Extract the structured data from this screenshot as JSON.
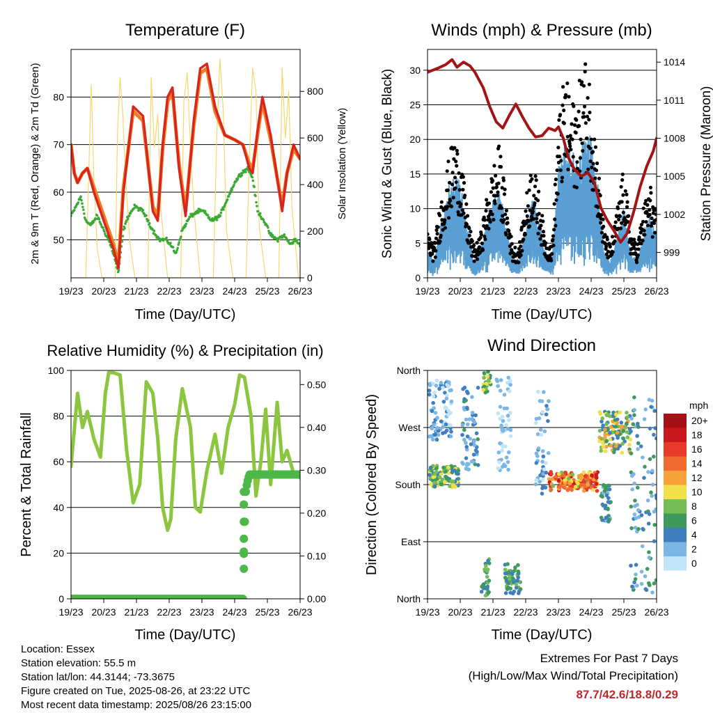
{
  "station_info": {
    "location": "Location: Essex",
    "elevation": "Station elevation: 55.5 m",
    "latlon": "Station lat/lon: 44.3144; -73.3675",
    "created": "Figure created on Tue, 2025-08-26, at 23:22 UTC",
    "recent": "Most recent data timestamp: 2025/08/26 23:15:00"
  },
  "extremes": {
    "title": "Extremes For Past 7 Days",
    "subtitle": "(High/Low/Max Wind/Total Precipitation)",
    "values": "87.7/42.6/18.8/0.29"
  },
  "colors": {
    "temp_2m": "#d7261e",
    "temp_9m": "#f47c20",
    "dewpoint": "#3aaa35",
    "insolation": "#f5d76e",
    "sonic_wind": "#5a9fd4",
    "gust": "#000000",
    "pressure": "#a31515",
    "rh": "#8cc63f",
    "precip": "#4db848"
  },
  "chart_data": [
    {
      "id": "temperature",
      "type": "line",
      "title": "Temperature (F)",
      "xlabel": "Time (Day/UTC)",
      "ylabel": "2m & 9m T (Red, Orange) & 2m Td (Green)",
      "y2label": "Solar Insolation (Yellow)",
      "x_ticks": [
        "19/23",
        "20/23",
        "21/23",
        "22/23",
        "23/23",
        "24/23",
        "25/23",
        "26/23"
      ],
      "xlim": [
        0,
        7
      ],
      "ylim": [
        42,
        90
      ],
      "y_ticks": [
        50,
        60,
        70,
        80
      ],
      "y2lim": [
        0,
        980
      ],
      "y2_ticks": [
        0,
        200,
        400,
        600,
        800
      ],
      "grid": "horizontal",
      "series": [
        {
          "key": "temp_2m",
          "x": [
            0,
            0.1,
            0.2,
            0.35,
            0.5,
            0.7,
            0.9,
            1.1,
            1.3,
            1.45,
            1.6,
            1.9,
            2.2,
            2.5,
            2.65,
            2.8,
            2.95,
            3.1,
            3.3,
            3.5,
            3.75,
            3.95,
            4.15,
            4.4,
            4.7,
            5.0,
            5.25,
            5.45,
            5.55,
            5.7,
            5.85,
            6.1,
            6.3,
            6.45,
            6.6,
            6.8,
            7.0
          ],
          "y": [
            70,
            64,
            62,
            64,
            65,
            60,
            56,
            52,
            48,
            44,
            60,
            78,
            76,
            56,
            54,
            70,
            80,
            82,
            65,
            55,
            75,
            86,
            87,
            78,
            72,
            71,
            70,
            65,
            64,
            73,
            80,
            72,
            63,
            56,
            64,
            70,
            67
          ]
        },
        {
          "key": "temp_9m",
          "x": [
            0,
            0.1,
            0.2,
            0.35,
            0.5,
            0.7,
            0.9,
            1.1,
            1.3,
            1.45,
            1.6,
            1.9,
            2.2,
            2.5,
            2.65,
            2.8,
            2.95,
            3.1,
            3.3,
            3.5,
            3.75,
            3.95,
            4.15,
            4.4,
            4.7,
            5.0,
            5.25,
            5.45,
            5.55,
            5.7,
            5.85,
            6.1,
            6.3,
            6.45,
            6.6,
            6.8,
            7.0
          ],
          "y": [
            70,
            64,
            62,
            64,
            65,
            61,
            57,
            53,
            49,
            45,
            61,
            77,
            75,
            57,
            55,
            69,
            79,
            81,
            66,
            56,
            74,
            85,
            86,
            77,
            72,
            71,
            70,
            66,
            65,
            72,
            79,
            71,
            63,
            57,
            64,
            69,
            67
          ]
        },
        {
          "key": "dewpoint",
          "x": [
            0,
            0.15,
            0.3,
            0.45,
            0.6,
            0.8,
            1.0,
            1.15,
            1.3,
            1.45,
            1.6,
            1.75,
            1.95,
            2.2,
            2.5,
            2.7,
            2.9,
            3.05,
            3.2,
            3.4,
            3.65,
            3.9,
            4.05,
            4.3,
            4.55,
            4.8,
            5.0,
            5.2,
            5.4,
            5.55,
            5.7,
            5.9,
            6.1,
            6.3,
            6.5,
            6.7,
            6.85,
            7.0
          ],
          "y": [
            55,
            57,
            59,
            54,
            53,
            55,
            52,
            50,
            47,
            43,
            52,
            55,
            57,
            56,
            52,
            50,
            50,
            49,
            47,
            52,
            55,
            56,
            56,
            54,
            55,
            59,
            62,
            64,
            65,
            63,
            56,
            54,
            51,
            50,
            51,
            49,
            50,
            49
          ]
        },
        {
          "key": "insolation",
          "x": [
            0,
            0.45,
            0.55,
            0.62,
            0.7,
            0.8,
            0.95,
            1.35,
            1.42,
            1.5,
            1.58,
            1.65,
            1.72,
            1.8,
            1.95,
            2.35,
            2.45,
            2.55,
            2.65,
            2.75,
            2.95,
            3.35,
            3.45,
            3.55,
            3.65,
            3.75,
            3.95,
            4.35,
            4.45,
            4.55,
            4.65,
            4.75,
            4.95,
            5.35,
            5.45,
            5.55,
            5.65,
            5.75,
            5.95,
            6.35,
            6.45,
            6.55,
            6.65,
            6.75,
            6.95
          ],
          "y": [
            0,
            0,
            500,
            830,
            420,
            120,
            0,
            0,
            620,
            860,
            700,
            480,
            320,
            150,
            0,
            0,
            860,
            560,
            700,
            280,
            0,
            0,
            760,
            880,
            560,
            300,
            0,
            0,
            600,
            940,
            720,
            200,
            0,
            0,
            500,
            900,
            800,
            220,
            0,
            0,
            900,
            600,
            800,
            300,
            0
          ]
        }
      ]
    },
    {
      "id": "winds",
      "type": "scatter",
      "title": "Winds (mph) & Pressure (mb)",
      "xlabel": "Time (Day/UTC)",
      "ylabel": "Sonic Wind & Gust (Blue, Black)",
      "y2label": "Station Pressure (Maroon)",
      "x_ticks": [
        "19/23",
        "20/23",
        "21/23",
        "22/23",
        "23/23",
        "24/23",
        "25/23",
        "26/23"
      ],
      "xlim": [
        0,
        7
      ],
      "ylim": [
        0,
        33
      ],
      "y_ticks": [
        0,
        5,
        10,
        15,
        20,
        25,
        30
      ],
      "y2lim": [
        997,
        1015
      ],
      "y2_ticks": [
        999,
        1002,
        1005,
        1008,
        1011,
        1014
      ],
      "grid": "horizontal",
      "series": [
        {
          "key": "sonic_wind",
          "x": [
            0,
            0.2,
            0.4,
            0.6,
            0.8,
            1.0,
            1.2,
            1.4,
            1.6,
            1.8,
            2.0,
            2.2,
            2.4,
            2.6,
            2.8,
            3.0,
            3.2,
            3.4,
            3.6,
            3.8,
            4.0,
            4.2,
            4.4,
            4.6,
            4.8,
            5.0,
            5.2,
            5.4,
            5.6,
            5.8,
            6.0,
            6.2,
            6.4,
            6.6,
            6.8,
            7.0
          ],
          "y": [
            3,
            2,
            6,
            9,
            12,
            11,
            6,
            2,
            3,
            6,
            9,
            10,
            6,
            2,
            2,
            6,
            9,
            7,
            3,
            2,
            12,
            15,
            13,
            14,
            15,
            16,
            10,
            3,
            2,
            5,
            8,
            3,
            2,
            5,
            7,
            5
          ]
        },
        {
          "key": "gust",
          "x": [
            0,
            0.2,
            0.4,
            0.6,
            0.8,
            1.0,
            1.2,
            1.4,
            1.6,
            1.8,
            2.0,
            2.2,
            2.4,
            2.6,
            2.8,
            3.0,
            3.2,
            3.4,
            3.6,
            3.8,
            4.0,
            4.2,
            4.4,
            4.6,
            4.8,
            5.0,
            5.2,
            5.4,
            5.6,
            5.8,
            6.0,
            6.2,
            6.4,
            6.6,
            6.8,
            7.0
          ],
          "y": [
            6,
            4,
            10,
            14,
            18,
            16,
            9,
            4,
            5,
            10,
            14,
            17,
            10,
            4,
            4,
            10,
            15,
            11,
            5,
            4,
            20,
            26,
            22,
            24,
            28,
            25,
            15,
            6,
            4,
            9,
            14,
            6,
            4,
            9,
            12,
            8
          ]
        },
        {
          "key": "pressure",
          "x": [
            0,
            0.3,
            0.55,
            0.75,
            0.9,
            1.1,
            1.3,
            1.45,
            1.7,
            1.9,
            2.1,
            2.3,
            2.5,
            2.7,
            2.9,
            3.1,
            3.3,
            3.5,
            3.7,
            3.9,
            4.0,
            4.15,
            4.3,
            4.5,
            4.7,
            4.9,
            5.1,
            5.3,
            5.5,
            5.7,
            5.9,
            6.1,
            6.3,
            6.5,
            6.7,
            6.9,
            7.0
          ],
          "y": [
            1013.2,
            1013.5,
            1013.8,
            1014.2,
            1013.6,
            1014.0,
            1013.7,
            1013.2,
            1012.0,
            1010.5,
            1009.3,
            1008.8,
            1009.8,
            1010.7,
            1009.7,
            1008.8,
            1008.1,
            1008.2,
            1008.8,
            1008.6,
            1008.9,
            1008.0,
            1006.5,
            1005.5,
            1005.0,
            1005.3,
            1004.5,
            1002.5,
            1001.5,
            1000.7,
            999.8,
            1000.5,
            1002.2,
            1004.2,
            1005.8,
            1007.0,
            1008.0
          ]
        }
      ]
    },
    {
      "id": "humidity",
      "type": "line",
      "title": "Relative Humidity (%) & Precipitation (in)",
      "xlabel": "Time (Day/UTC)",
      "ylabel": "Percent & Total Rainfall",
      "x_ticks": [
        "19/23",
        "20/23",
        "21/23",
        "22/23",
        "23/23",
        "24/23",
        "25/23",
        "26/23"
      ],
      "xlim": [
        0,
        7
      ],
      "ylim": [
        0,
        100
      ],
      "y_ticks": [
        0,
        20,
        40,
        60,
        80,
        100
      ],
      "y2lim": [
        0,
        0.533
      ],
      "y2_ticks": [
        "0.00",
        "0.10",
        "0.20",
        "0.30",
        "0.40",
        "0.50"
      ],
      "grid": "horizontal",
      "series": [
        {
          "key": "rh",
          "x": [
            0,
            0.2,
            0.35,
            0.5,
            0.7,
            0.9,
            1.05,
            1.15,
            1.3,
            1.5,
            1.7,
            1.9,
            2.1,
            2.3,
            2.5,
            2.65,
            2.8,
            2.95,
            3.05,
            3.2,
            3.4,
            3.65,
            3.8,
            3.95,
            4.15,
            4.4,
            4.6,
            4.8,
            5.0,
            5.15,
            5.3,
            5.5,
            5.65,
            5.8,
            5.95,
            6.1,
            6.3,
            6.45,
            6.6,
            6.8,
            7.0
          ],
          "y": [
            58,
            90,
            75,
            82,
            70,
            62,
            90,
            99,
            99,
            98,
            65,
            42,
            50,
            95,
            90,
            70,
            40,
            30,
            35,
            70,
            92,
            75,
            40,
            38,
            56,
            72,
            55,
            75,
            85,
            98,
            97,
            80,
            45,
            60,
            83,
            50,
            86,
            60,
            65,
            55,
            53
          ]
        },
        {
          "key": "precip",
          "x": [
            0,
            5.25,
            5.27,
            5.29,
            5.31,
            5.34,
            5.38,
            5.45,
            6.0,
            6.5,
            7.0
          ],
          "y": [
            0,
            0,
            0.07,
            0.14,
            0.18,
            0.25,
            0.27,
            0.29,
            0.29,
            0.29,
            0.29
          ]
        }
      ]
    },
    {
      "id": "direction",
      "type": "scatter",
      "title": "Wind Direction",
      "xlabel": "Time (Day/UTC)",
      "ylabel": "Direction (Colored By Speed)",
      "x_ticks": [
        "19/23",
        "20/23",
        "21/23",
        "22/23",
        "23/23",
        "24/23",
        "25/23",
        "26/23"
      ],
      "xlim": [
        0,
        7
      ],
      "ylim": [
        0,
        360
      ],
      "y_ticks": [
        "North",
        "East",
        "South",
        "West",
        "North"
      ],
      "grid": "horizontal",
      "legend": {
        "title": "mph",
        "labels": [
          "20+",
          "18",
          "16",
          "14",
          "12",
          "10",
          "8",
          "6",
          "4",
          "2",
          "0"
        ],
        "colors": [
          "#a50f15",
          "#cb181d",
          "#e8392b",
          "#f26a2e",
          "#f9a23b",
          "#f2e04b",
          "#74be55",
          "#3d9a5c",
          "#3f7fbf",
          "#7cb6e4",
          "#bfe3f7"
        ],
        "position": "right"
      },
      "clusters": [
        {
          "x": [
            0.05,
            0.75
          ],
          "y": [
            250,
            345
          ],
          "speed": [
            0,
            5
          ]
        },
        {
          "x": [
            0.05,
            0.95
          ],
          "y": [
            175,
            210
          ],
          "speed": [
            3,
            11
          ]
        },
        {
          "x": [
            1.05,
            1.55
          ],
          "y": [
            200,
            335
          ],
          "speed": [
            1,
            6
          ]
        },
        {
          "x": [
            1.7,
            1.95
          ],
          "y": [
            325,
            360
          ],
          "speed": [
            4,
            11
          ]
        },
        {
          "x": [
            1.65,
            1.9
          ],
          "y": [
            5,
            65
          ],
          "speed": [
            3,
            9
          ]
        },
        {
          "x": [
            2.35,
            2.85
          ],
          "y": [
            8,
            55
          ],
          "speed": [
            3,
            9
          ]
        },
        {
          "x": [
            2.1,
            2.55
          ],
          "y": [
            200,
            350
          ],
          "speed": [
            0,
            3
          ]
        },
        {
          "x": [
            3.3,
            3.7
          ],
          "y": [
            165,
            330
          ],
          "speed": [
            0,
            5
          ]
        },
        {
          "x": [
            3.7,
            5.2
          ],
          "y": [
            170,
            200
          ],
          "speed": [
            8,
            18
          ]
        },
        {
          "x": [
            5.25,
            6.2
          ],
          "y": [
            230,
            295
          ],
          "speed": [
            3,
            13
          ]
        },
        {
          "x": [
            5.3,
            5.6
          ],
          "y": [
            120,
            180
          ],
          "speed": [
            2,
            7
          ]
        },
        {
          "x": [
            6.2,
            7.0
          ],
          "y": [
            10,
            320
          ],
          "speed": [
            1,
            7
          ]
        }
      ]
    }
  ]
}
